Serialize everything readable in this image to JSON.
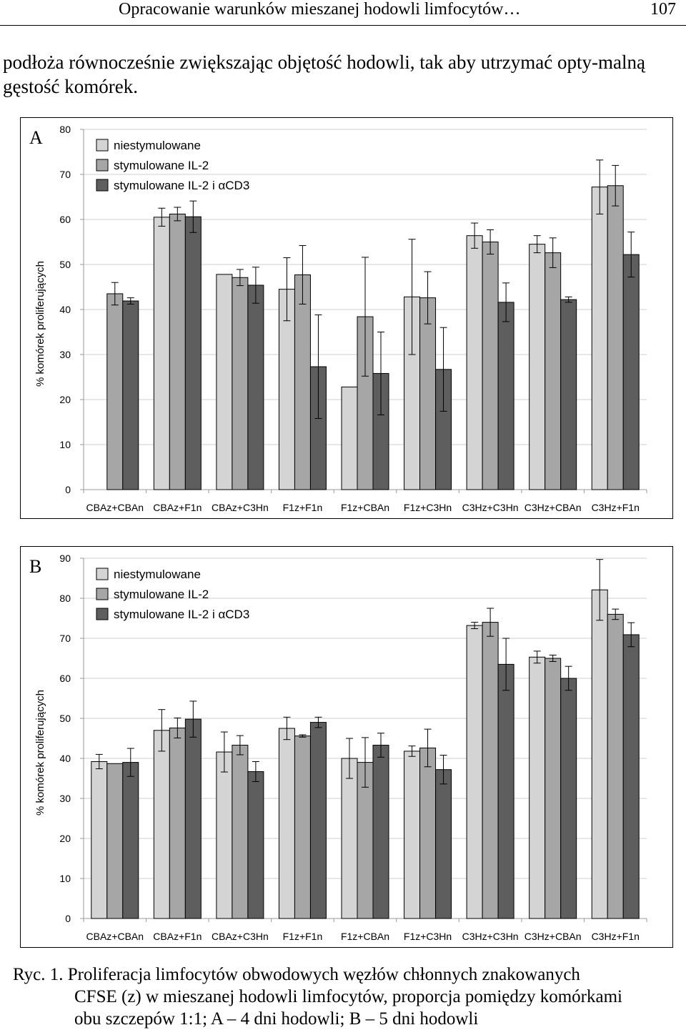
{
  "header": {
    "running_title": "Opracowanie warunków mieszanej hodowli limfocytów…",
    "page_number": "107"
  },
  "body_text": "podłoża równocześnie zwiększając objętość hodowli, tak aby utrzymać opty-malną gęstość komórek.",
  "colors": {
    "niestymulowane": "#d4d4d4",
    "stymulowane_il2": "#a6a6a6",
    "stymulowane_il2_acd3": "#5e5e5e",
    "grid": "#cfcfcf",
    "axis": "#9a9a9a"
  },
  "chart_data": [
    {
      "type": "bar",
      "panel": "A",
      "ylabel": "% komórek proliferujących",
      "ylim": [
        0,
        80
      ],
      "yticks": [
        0,
        10,
        20,
        30,
        40,
        50,
        60,
        70,
        80
      ],
      "legend_position": "top-left",
      "categories": [
        "CBAz+CBAn",
        "CBAz+F1n",
        "CBAz+C3Hn",
        "F1z+F1n",
        "F1z+CBAn",
        "F1z+C3Hn",
        "C3Hz+C3Hn",
        "C3Hz+CBAn",
        "C3Hz+F1n"
      ],
      "series": [
        {
          "name": "niestymulowane",
          "color": "#d4d4d4",
          "values": [
            null,
            60.5,
            47.8,
            44.5,
            22.8,
            42.8,
            56.4,
            54.5,
            67.2
          ],
          "errors": [
            null,
            2.0,
            null,
            7.0,
            null,
            12.8,
            2.8,
            1.9,
            6.0
          ]
        },
        {
          "name": "stymulowane IL-2",
          "color": "#a6a6a6",
          "values": [
            43.5,
            61.2,
            47.1,
            47.7,
            38.4,
            42.6,
            55.0,
            52.6,
            67.5
          ],
          "errors": [
            2.5,
            1.5,
            1.8,
            6.5,
            13.2,
            5.8,
            2.7,
            3.3,
            4.5
          ]
        },
        {
          "name": "stymulowane IL-2 i αCD3",
          "color": "#5e5e5e",
          "values": [
            41.9,
            60.6,
            45.4,
            27.3,
            25.8,
            26.7,
            41.6,
            42.2,
            52.2
          ],
          "errors": [
            0.7,
            3.5,
            4.0,
            11.5,
            9.2,
            9.3,
            4.3,
            0.6,
            5.0
          ]
        }
      ]
    },
    {
      "type": "bar",
      "panel": "B",
      "ylabel": "% komórek proliferujących",
      "ylim": [
        0,
        90
      ],
      "yticks": [
        0,
        10,
        20,
        30,
        40,
        50,
        60,
        70,
        80,
        90
      ],
      "legend_position": "top-left",
      "categories": [
        "CBAz+CBAn",
        "CBAz+F1n",
        "CBAz+C3Hn",
        "F1z+F1n",
        "F1z+CBAn",
        "F1z+C3Hn",
        "C3Hz+C3Hn",
        "C3Hz+CBAn",
        "C3Hz+F1n"
      ],
      "series": [
        {
          "name": "niestymulowane",
          "color": "#d4d4d4",
          "values": [
            39.2,
            47.0,
            41.6,
            47.5,
            40.0,
            41.8,
            73.2,
            65.3,
            82.1
          ],
          "errors": [
            1.8,
            5.2,
            5.0,
            2.8,
            5.0,
            1.3,
            0.8,
            1.5,
            7.6
          ]
        },
        {
          "name": "stymulowane IL-2",
          "color": "#a6a6a6",
          "values": [
            38.7,
            47.6,
            43.3,
            45.6,
            39.0,
            42.6,
            74.0,
            65.0,
            76.0
          ],
          "errors": [
            null,
            2.5,
            2.4,
            0.3,
            6.2,
            4.7,
            3.5,
            0.8,
            1.3
          ]
        },
        {
          "name": "stymulowane IL-2 i αCD3",
          "color": "#5e5e5e",
          "values": [
            39.0,
            49.8,
            36.7,
            49.0,
            43.3,
            37.2,
            63.5,
            60.0,
            70.9
          ],
          "errors": [
            3.5,
            4.5,
            2.5,
            1.3,
            3.0,
            3.6,
            6.5,
            3.0,
            3.0
          ]
        }
      ]
    }
  ],
  "caption": {
    "line1": "Ryc. 1. Proliferacja limfocytów obwodowych węzłów chłonnych znakowanych",
    "line2": "CFSE (z) w mieszanej hodowli limfocytów, proporcja pomiędzy komórkami",
    "line3": "obu szczepów 1:1; A – 4 dni hodowli; B – 5 dni hodowli"
  }
}
